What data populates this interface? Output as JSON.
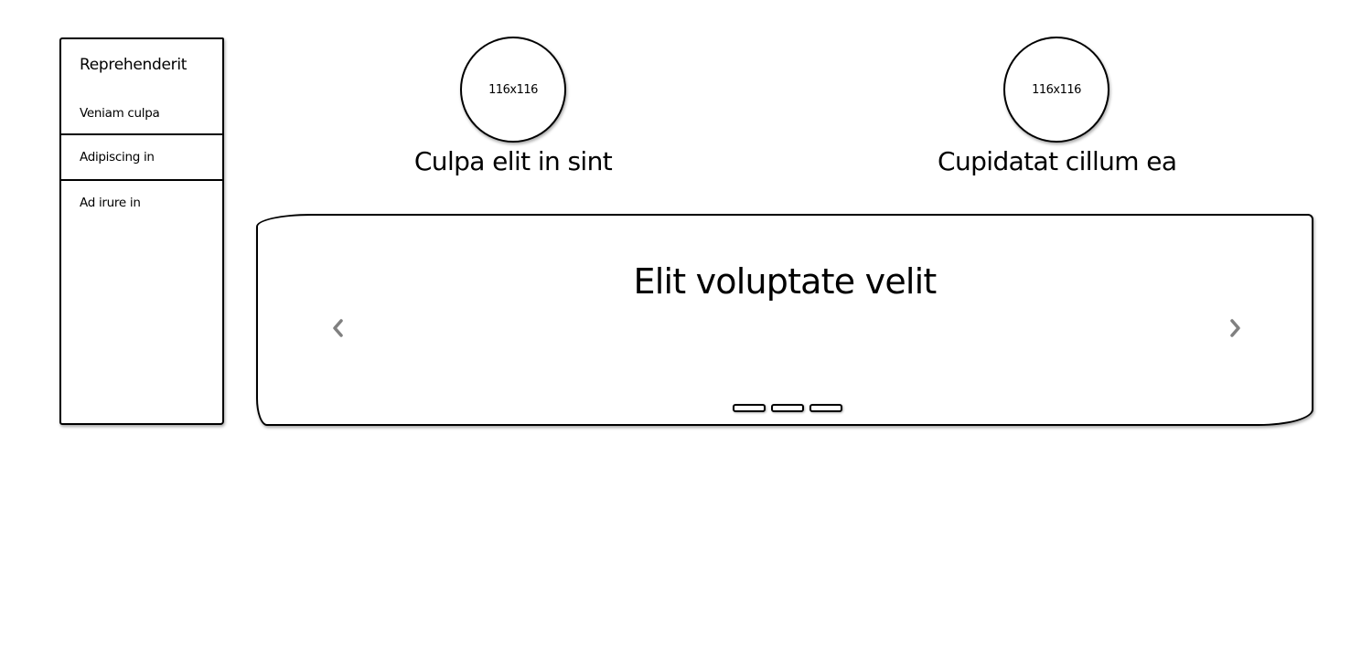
{
  "sidebar": {
    "title": "Reprehenderit",
    "items": [
      {
        "label": "Veniam culpa"
      },
      {
        "label": "Adipiscing in"
      },
      {
        "label": "Ad irure in"
      }
    ]
  },
  "avatars": [
    {
      "placeholder": "116x116",
      "caption": "Culpa elit in sint"
    },
    {
      "placeholder": "116x116",
      "caption": "Cupidatat cillum ea"
    }
  ],
  "carousel": {
    "title": "Elit voluptate velit",
    "prev_icon": "chevron-left-icon",
    "next_icon": "chevron-right-icon",
    "slide_count": 3,
    "arrow_color": "#808080"
  }
}
